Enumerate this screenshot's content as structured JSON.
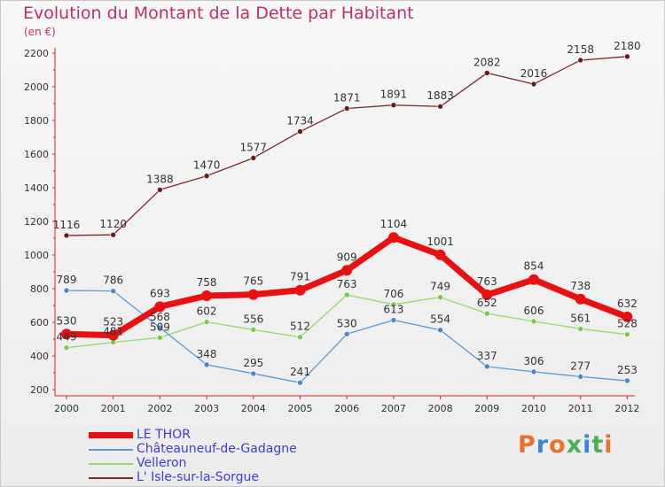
{
  "title": "Evolution du Montant de la Dette par Habitant",
  "subtitle": "(en €)",
  "brand": {
    "letters": [
      "P",
      "r",
      "o",
      "x",
      "i",
      "t",
      "i"
    ],
    "colors": [
      "#e8722a",
      "#3a86d8",
      "#e8722a",
      "#4caf50",
      "#3a86d8",
      "#4caf50",
      "#e8722a"
    ]
  },
  "chart_data": {
    "type": "line",
    "x": [
      "2000",
      "2001",
      "2002",
      "2003",
      "2004",
      "2005",
      "2006",
      "2007",
      "2008",
      "2009",
      "2010",
      "2011",
      "2012"
    ],
    "ylim": [
      200,
      2200
    ],
    "yticks": [
      "200",
      "400",
      "600",
      "800",
      "1000",
      "1200",
      "1400",
      "1600",
      "1800",
      "2000",
      "2200"
    ],
    "grid": false,
    "legend_position": "bottom-left",
    "series": [
      {
        "name": "LE THOR",
        "color": "#e81010",
        "point_color": "#e81010",
        "width": 7,
        "values": [
          530,
          523,
          693,
          758,
          765,
          791,
          909,
          1104,
          1001,
          763,
          854,
          738,
          632
        ],
        "labels": [
          "530",
          "523",
          "693",
          "758",
          "765",
          "791",
          "909",
          "1104",
          "1001",
          "763",
          "854",
          "738",
          "632"
        ]
      },
      {
        "name": "Châteauneuf-de-Gadagne",
        "color": "#5b9bd5",
        "point_color": "#4a86c8",
        "width": 1.3,
        "values": [
          789,
          786,
          568,
          348,
          295,
          241,
          530,
          613,
          554,
          337,
          306,
          277,
          253
        ],
        "labels": [
          "789",
          "786",
          "568",
          "348",
          "295",
          "241",
          "530",
          "613",
          "554",
          "337",
          "306",
          "277",
          "253"
        ]
      },
      {
        "name": "Velleron",
        "color": "#90dc6a",
        "point_color": "#7ac84e",
        "width": 1.3,
        "values": [
          449,
          481,
          509,
          602,
          556,
          512,
          763,
          706,
          749,
          652,
          606,
          561,
          528
        ],
        "labels": [
          "449",
          "481",
          "509",
          "602",
          "556",
          "512",
          "763",
          "706",
          "749",
          "652",
          "606",
          "561",
          "528"
        ]
      },
      {
        "name": "L' Isle-sur-la-Sorgue",
        "color": "#7a2a2a",
        "point_color": "#6a1a1a",
        "width": 1.3,
        "values": [
          1116,
          1120,
          1388,
          1470,
          1577,
          1734,
          1871,
          1891,
          1883,
          2082,
          2016,
          2158,
          2180
        ],
        "labels": [
          "1116",
          "1120",
          "1388",
          "1470",
          "1577",
          "1734",
          "1871",
          "1891",
          "1883",
          "2082",
          "2016",
          "2158",
          "2180"
        ]
      }
    ]
  }
}
